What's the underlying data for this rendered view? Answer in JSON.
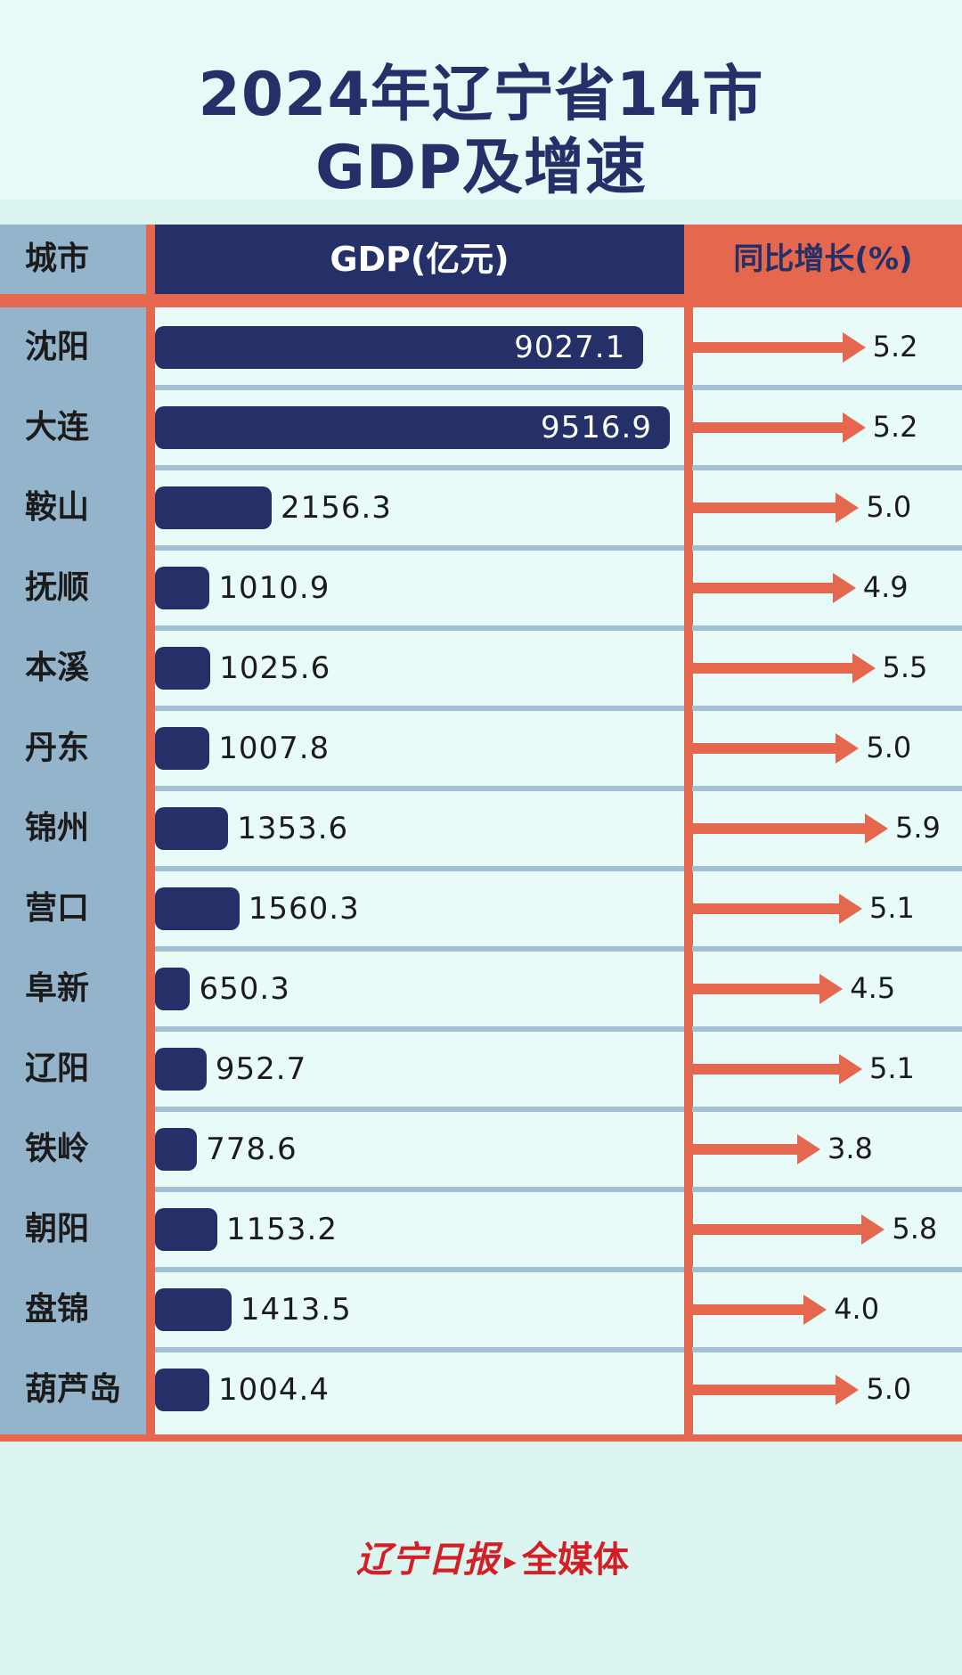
{
  "title": {
    "line1": "2024年辽宁省14市",
    "line2": "GDP及增速"
  },
  "chart_data": {
    "type": "bar",
    "title": "2024年辽宁省14市 GDP及增速",
    "columns": {
      "city": "城市",
      "gdp": "GDP(亿元)",
      "growth": "同比增长(%)"
    },
    "categories": [
      "沈阳",
      "大连",
      "鞍山",
      "抚顺",
      "本溪",
      "丹东",
      "锦州",
      "营口",
      "阜新",
      "辽阳",
      "铁岭",
      "朝阳",
      "盘锦",
      "葫芦岛"
    ],
    "series": [
      {
        "name": "GDP(亿元)",
        "values": [
          9027.1,
          9516.9,
          2156.3,
          1010.9,
          1025.6,
          1007.8,
          1353.6,
          1560.3,
          650.3,
          952.7,
          778.6,
          1153.2,
          1413.5,
          1004.4
        ],
        "color": "#253069"
      },
      {
        "name": "同比增长(%)",
        "values": [
          5.2,
          5.2,
          5.0,
          4.9,
          5.5,
          5.0,
          5.9,
          5.1,
          4.5,
          5.1,
          3.8,
          5.8,
          4.0,
          5.0
        ],
        "color": "#e5674e"
      }
    ],
    "value_format": {
      "gdp": "0.0",
      "growth": "0.0"
    }
  },
  "logo": {
    "name": "辽宁日报",
    "suffix": "全媒体"
  },
  "colors": {
    "navy": "#253069",
    "orange": "#e5674e",
    "slate": "#94b4cc",
    "background": "#e9fbf9"
  }
}
